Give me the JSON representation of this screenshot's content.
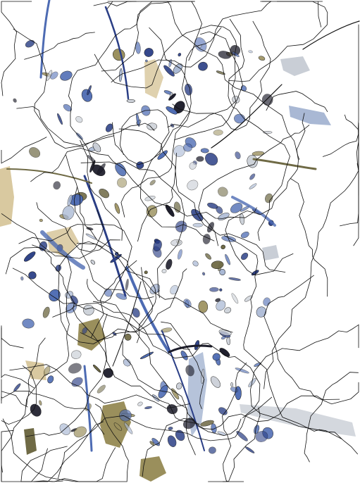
{
  "image": {
    "kind": "abstract-painting",
    "background_color": "#ffffff",
    "line_color": "#111111",
    "palette": {
      "navy": "#2b3f86",
      "blue": "#4d6bb3",
      "light_blue": "#a9b8d4",
      "grey_blue": "#c9ced6",
      "olive": "#6f6a45",
      "khaki": "#9a8f5c",
      "sand": "#d9c9a0",
      "dark": "#1c1c2a"
    }
  }
}
